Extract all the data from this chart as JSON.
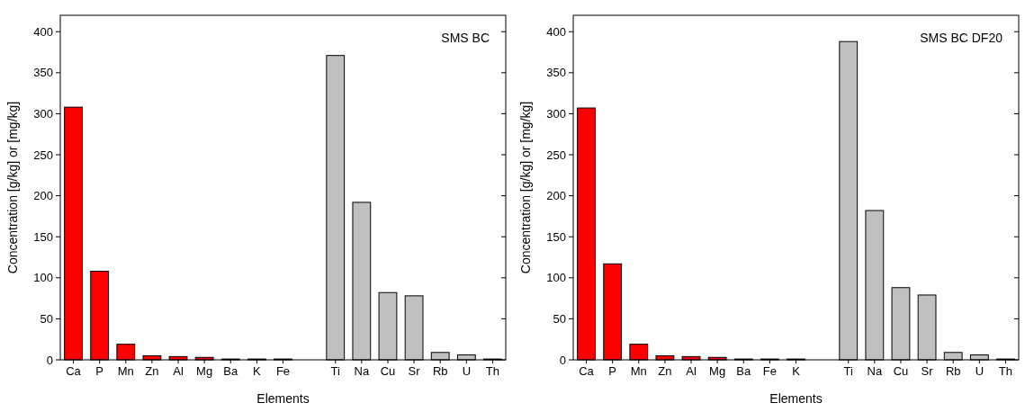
{
  "chart_data": [
    {
      "type": "bar",
      "title": "SMS BC",
      "xlabel": "Elements",
      "ylabel": "Concentration [g/kg] or [mg/kg]",
      "categories": [
        "Ca",
        "P",
        "Mn",
        "Zn",
        "Al",
        "Mg",
        "Ba",
        "K",
        "Fe",
        null,
        "Ti",
        "Na",
        "Cu",
        "Sr",
        "Rb",
        "U",
        "Th"
      ],
      "values": [
        308,
        108,
        19,
        5,
        4,
        3,
        1,
        1,
        1,
        null,
        371,
        192,
        82,
        78,
        9,
        6,
        1
      ],
      "colors": [
        "#ff0000",
        "#ff0000",
        "#ff0000",
        "#ff0000",
        "#ff0000",
        "#ff0000",
        "#ff0000",
        "#ff0000",
        "#ff0000",
        null,
        "#c0c0c0",
        "#c0c0c0",
        "#c0c0c0",
        "#c0c0c0",
        "#c0c0c0",
        "#c0c0c0",
        "#c0c0c0"
      ],
      "ylim": [
        0,
        420
      ],
      "yticks": [
        0,
        50,
        100,
        150,
        200,
        250,
        300,
        350,
        400
      ]
    },
    {
      "type": "bar",
      "title": "SMS BC DF20",
      "xlabel": "Elements",
      "ylabel": "Concentration [g/kg] or [mg/kg]",
      "categories": [
        "Ca",
        "P",
        "Mn",
        "Zn",
        "Al",
        "Mg",
        "Ba",
        "Fe",
        "K",
        null,
        "Ti",
        "Na",
        "Cu",
        "Sr",
        "Rb",
        "U",
        "Th"
      ],
      "values": [
        307,
        117,
        19,
        5,
        4,
        3,
        1,
        1,
        1,
        null,
        388,
        182,
        88,
        79,
        9,
        6,
        1
      ],
      "colors": [
        "#ff0000",
        "#ff0000",
        "#ff0000",
        "#ff0000",
        "#ff0000",
        "#ff0000",
        "#ff0000",
        "#ff0000",
        "#ff0000",
        null,
        "#c0c0c0",
        "#c0c0c0",
        "#c0c0c0",
        "#c0c0c0",
        "#c0c0c0",
        "#c0c0c0",
        "#c0c0c0"
      ],
      "ylim": [
        0,
        420
      ],
      "yticks": [
        0,
        50,
        100,
        150,
        200,
        250,
        300,
        350,
        400
      ]
    }
  ]
}
